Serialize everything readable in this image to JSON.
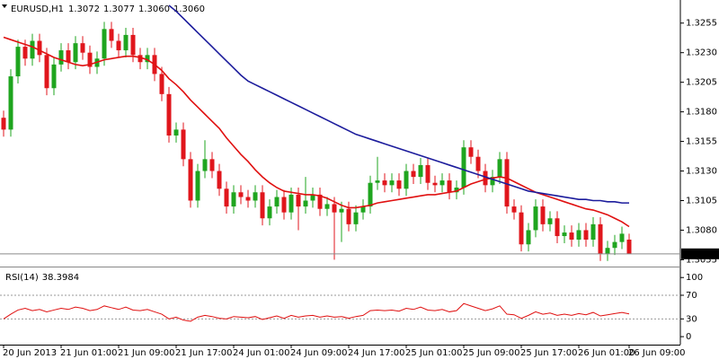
{
  "chart_data": [
    {
      "type": "candlestick",
      "title": "EURUSD,H1",
      "quote_labels": [
        "1.3072",
        "1.3077",
        "1.3060",
        "1.3060"
      ],
      "price_label": "1.3060",
      "up_color": "#1fa51f",
      "down_color": "#e0161c",
      "categories": [
        "20 Jun 2013",
        null,
        null,
        null,
        null,
        null,
        null,
        null,
        "21 Jun 01:00",
        null,
        null,
        null,
        null,
        null,
        null,
        null,
        "21 Jun 09:00",
        null,
        null,
        null,
        null,
        null,
        null,
        null,
        "21 Jun 17:00",
        null,
        null,
        null,
        null,
        null,
        null,
        null,
        "24 Jun 01:00",
        null,
        null,
        null,
        null,
        null,
        null,
        null,
        "24 Jun 09:00",
        null,
        null,
        null,
        null,
        null,
        null,
        null,
        "24 Jun 17:00",
        null,
        null,
        null,
        null,
        null,
        null,
        null,
        "25 Jun 01:00",
        null,
        null,
        null,
        null,
        null,
        null,
        null,
        "25 Jun 09:00",
        null,
        null,
        null,
        null,
        null,
        null,
        null,
        "25 Jun 17:00",
        null,
        null,
        null,
        null,
        null,
        null,
        null,
        "26 Jun 01:00",
        null,
        null,
        null,
        null,
        null,
        null,
        "26 Jun 09:00"
      ],
      "open": [
        1.3175,
        1.3165,
        1.321,
        1.3235,
        1.3225,
        1.324,
        1.3228,
        1.32,
        1.322,
        1.3232,
        1.3222,
        1.3238,
        1.323,
        1.3218,
        1.3225,
        1.325,
        1.324,
        1.3232,
        1.3245,
        1.3228,
        1.3222,
        1.3228,
        1.3212,
        1.3195,
        1.316,
        1.3165,
        1.314,
        1.3105,
        1.313,
        1.314,
        1.313,
        1.3115,
        1.31,
        1.3112,
        1.3108,
        1.3105,
        1.3112,
        1.309,
        1.31,
        1.3108,
        1.3095,
        1.311,
        1.31,
        1.3105,
        1.311,
        1.3098,
        1.3102,
        1.3095,
        1.3098,
        1.3085,
        1.3095,
        1.31,
        1.312,
        1.3122,
        1.3118,
        1.3122,
        1.3115,
        1.313,
        1.3125,
        1.3135,
        1.312,
        1.3118,
        1.3122,
        1.3112,
        1.3116,
        1.315,
        1.3142,
        1.313,
        1.3118,
        1.3125,
        1.314,
        1.31,
        1.3095,
        1.3068,
        1.308,
        1.31,
        1.3085,
        1.309,
        1.3075,
        1.3078,
        1.3072,
        1.308,
        1.3072,
        1.3085,
        1.306,
        1.3065,
        1.307,
        1.3072
      ],
      "high": [
        1.3181,
        1.3216,
        1.3241,
        1.3241,
        1.3246,
        1.3246,
        1.3234,
        1.3226,
        1.3238,
        1.3238,
        1.3244,
        1.3244,
        1.3236,
        1.3231,
        1.3256,
        1.3256,
        1.3246,
        1.3251,
        1.3251,
        1.3234,
        1.3234,
        1.3234,
        1.3218,
        1.3201,
        1.3171,
        1.3171,
        1.3146,
        1.3136,
        1.3156,
        1.3146,
        1.3136,
        1.3121,
        1.3118,
        1.3118,
        1.3114,
        1.3118,
        1.3118,
        1.3106,
        1.3114,
        1.3114,
        1.3116,
        1.3116,
        1.3125,
        1.3116,
        1.3116,
        1.3108,
        1.3108,
        1.3104,
        1.3104,
        1.3101,
        1.3106,
        1.3126,
        1.3142,
        1.3128,
        1.3128,
        1.3128,
        1.3136,
        1.3136,
        1.3141,
        1.3141,
        1.3126,
        1.3128,
        1.3128,
        1.3122,
        1.3156,
        1.3156,
        1.3148,
        1.3136,
        1.3131,
        1.3146,
        1.3146,
        1.3106,
        1.3101,
        1.3086,
        1.3106,
        1.3106,
        1.3096,
        1.3096,
        1.3084,
        1.3084,
        1.3086,
        1.3086,
        1.3091,
        1.3091,
        1.3071,
        1.3076,
        1.3083,
        1.3077
      ],
      "low": [
        1.3159,
        1.3159,
        1.3204,
        1.3219,
        1.3219,
        1.3222,
        1.3194,
        1.3194,
        1.3214,
        1.3216,
        1.3216,
        1.3224,
        1.3212,
        1.3212,
        1.3219,
        1.3234,
        1.3226,
        1.3226,
        1.3222,
        1.3216,
        1.3216,
        1.3206,
        1.3189,
        1.3154,
        1.3154,
        1.3134,
        1.3099,
        1.3099,
        1.3124,
        1.3124,
        1.3109,
        1.3094,
        1.3094,
        1.3102,
        1.3099,
        1.3099,
        1.3084,
        1.3084,
        1.3094,
        1.3089,
        1.3089,
        1.308,
        1.3094,
        1.3099,
        1.3092,
        1.3092,
        1.3055,
        1.307,
        1.3079,
        1.3079,
        1.3089,
        1.3094,
        1.3114,
        1.3112,
        1.3112,
        1.3109,
        1.3109,
        1.3119,
        1.3119,
        1.3114,
        1.3112,
        1.3112,
        1.3106,
        1.3106,
        1.311,
        1.3136,
        1.3124,
        1.3112,
        1.3112,
        1.3119,
        1.3094,
        1.3089,
        1.3062,
        1.3062,
        1.3074,
        1.3079,
        1.3079,
        1.3069,
        1.3069,
        1.3066,
        1.3066,
        1.3066,
        1.3066,
        1.3054,
        1.3054,
        1.3059,
        1.3064,
        1.306
      ],
      "close": [
        1.3165,
        1.321,
        1.3235,
        1.3225,
        1.324,
        1.3228,
        1.32,
        1.322,
        1.3232,
        1.3222,
        1.3238,
        1.323,
        1.3218,
        1.3225,
        1.325,
        1.324,
        1.3232,
        1.3245,
        1.3228,
        1.3222,
        1.3228,
        1.3212,
        1.3195,
        1.316,
        1.3165,
        1.314,
        1.3105,
        1.313,
        1.314,
        1.313,
        1.3115,
        1.31,
        1.3112,
        1.3108,
        1.3105,
        1.3112,
        1.309,
        1.31,
        1.3108,
        1.3095,
        1.311,
        1.31,
        1.3105,
        1.311,
        1.3098,
        1.3102,
        1.3095,
        1.3098,
        1.3085,
        1.3095,
        1.31,
        1.312,
        1.3122,
        1.3118,
        1.3122,
        1.3115,
        1.313,
        1.3125,
        1.3135,
        1.312,
        1.3118,
        1.3122,
        1.3112,
        1.3116,
        1.315,
        1.3142,
        1.313,
        1.3118,
        1.3125,
        1.314,
        1.31,
        1.3095,
        1.3068,
        1.308,
        1.31,
        1.3085,
        1.309,
        1.3075,
        1.3078,
        1.3072,
        1.308,
        1.3072,
        1.3085,
        1.306,
        1.3065,
        1.307,
        1.3077,
        1.306
      ],
      "series": [
        {
          "color": "#e01010",
          "values": [
            1.3243,
            1.3241,
            1.3239,
            1.3237,
            1.3235,
            1.3232,
            1.3229,
            1.3226,
            1.3224,
            1.3222,
            1.322,
            1.3219,
            1.322,
            1.3222,
            1.3224,
            1.3225,
            1.3226,
            1.3227,
            1.3227,
            1.3226,
            1.3224,
            1.322,
            1.3215,
            1.3208,
            1.3203,
            1.3197,
            1.319,
            1.3184,
            1.3178,
            1.3172,
            1.3166,
            1.3158,
            1.3151,
            1.3144,
            1.3138,
            1.3131,
            1.3125,
            1.312,
            1.3116,
            1.3113,
            1.3112,
            1.3111,
            1.311,
            1.311,
            1.3109,
            1.3107,
            1.3104,
            1.3101,
            1.3099,
            1.3099,
            1.31,
            1.3101,
            1.3103,
            1.3104,
            1.3105,
            1.3106,
            1.3107,
            1.3108,
            1.3109,
            1.311,
            1.311,
            1.3111,
            1.3112,
            1.3113,
            1.3116,
            1.3119,
            1.3121,
            1.3123,
            1.3124,
            1.3125,
            1.3124,
            1.3121,
            1.3118,
            1.3115,
            1.3112,
            1.311,
            1.3108,
            1.3106,
            1.3104,
            1.3102,
            1.31,
            1.3098,
            1.3097,
            1.3095,
            1.3093,
            1.309,
            1.3087,
            1.3083
          ]
        },
        {
          "color": "#1c1c9c",
          "values": [
            null,
            null,
            null,
            null,
            null,
            null,
            null,
            null,
            null,
            null,
            null,
            null,
            null,
            null,
            null,
            null,
            null,
            null,
            null,
            null,
            null,
            null,
            null,
            1.327,
            1.3265,
            1.3259,
            1.3253,
            1.3247,
            1.3241,
            1.3235,
            1.3229,
            1.3223,
            1.3217,
            1.3211,
            1.3206,
            1.3203,
            1.32,
            1.3197,
            1.3194,
            1.3191,
            1.3188,
            1.3185,
            1.3182,
            1.3179,
            1.3176,
            1.3173,
            1.317,
            1.3167,
            1.3164,
            1.3161,
            1.3159,
            1.3157,
            1.3155,
            1.3153,
            1.3151,
            1.3149,
            1.3147,
            1.3145,
            1.3143,
            1.3141,
            1.3139,
            1.3137,
            1.3135,
            1.3133,
            1.3131,
            1.3129,
            1.3127,
            1.3125,
            1.3123,
            1.3121,
            1.3119,
            1.3117,
            1.3115,
            1.3113,
            1.3112,
            1.3111,
            1.311,
            1.3109,
            1.3108,
            1.3107,
            1.3106,
            1.3106,
            1.3105,
            1.3105,
            1.3104,
            1.3104,
            1.3103,
            1.3103
          ]
        }
      ],
      "ylim": [
        1.305,
        1.3273
      ],
      "yticks": [
        1.3255,
        {
          "value": 1.323,
          "label": "1.3230"
        },
        1.3205,
        {
          "value": 1.318,
          "label": "1.3180"
        },
        1.3155,
        {
          "value": 1.313,
          "label": "1.3130"
        },
        1.3105,
        {
          "value": 1.308,
          "label": "1.3080"
        },
        1.3055
      ]
    },
    {
      "type": "line",
      "title": "RSI(14)",
      "color": "#e01010",
      "values": [
        30,
        38,
        45,
        48,
        44,
        46,
        42,
        45,
        48,
        46,
        50,
        48,
        44,
        46,
        52,
        49,
        46,
        50,
        45,
        44,
        46,
        42,
        38,
        30,
        33,
        28,
        26,
        33,
        36,
        34,
        31,
        30,
        34,
        33,
        32,
        34,
        29,
        32,
        35,
        31,
        36,
        33,
        35,
        36,
        33,
        35,
        33,
        34,
        31,
        34,
        36,
        44,
        45,
        44,
        45,
        43,
        48,
        46,
        50,
        45,
        44,
        46,
        42,
        44,
        56,
        52,
        48,
        44,
        47,
        52,
        38,
        37,
        31,
        36,
        42,
        38,
        40,
        36,
        38,
        36,
        39,
        37,
        41,
        35,
        37,
        39,
        41,
        38.3984
      ],
      "ylim": [
        -12,
        114
      ],
      "yticks": [
        100,
        70,
        30,
        0
      ],
      "dashed_levels": [
        70,
        30
      ]
    }
  ]
}
